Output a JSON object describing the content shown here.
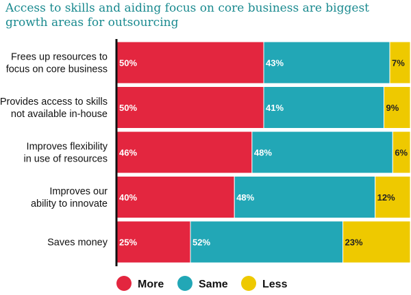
{
  "title": "Access to skills and aiding focus on core business are biggest growth areas for outsourcing",
  "colors": {
    "More": "#e3263f",
    "Same": "#22a7b6",
    "Less": "#eec900"
  },
  "chart_data": {
    "type": "bar",
    "orientation": "horizontal",
    "stacked": true,
    "title": "Access to skills and aiding focus on core business are biggest growth areas for outsourcing",
    "categories": [
      [
        "Frees up resources to",
        "focus on core business"
      ],
      [
        "Provides access to skills",
        "not available in-house"
      ],
      [
        "Improves flexibility",
        "in use of resources"
      ],
      [
        "Improves our",
        "ability to innovate"
      ],
      [
        "Saves money"
      ]
    ],
    "series": [
      {
        "name": "More",
        "values": [
          50,
          50,
          46,
          40,
          25
        ]
      },
      {
        "name": "Same",
        "values": [
          43,
          41,
          48,
          48,
          52
        ]
      },
      {
        "name": "Less",
        "values": [
          7,
          9,
          6,
          12,
          23
        ]
      }
    ],
    "value_suffix": "%",
    "xlim": [
      0,
      100
    ],
    "legend_position": "bottom",
    "grid": false
  }
}
